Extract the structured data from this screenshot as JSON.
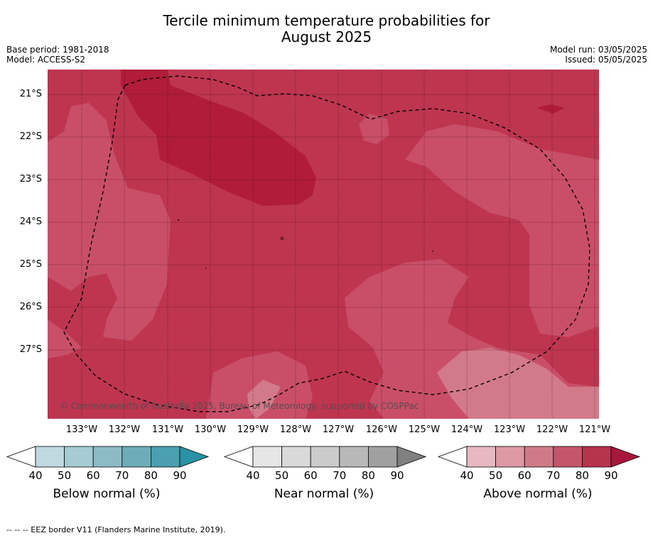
{
  "header": {
    "title_line1": "Tercile minimum temperature probabilities for",
    "title_line2": "August 2025",
    "base_period": "Base period: 1981-2018",
    "model": "Model: ACCESS-S2",
    "model_run": "Model run: 03/05/2025",
    "issued": "Issued: 05/05/2025"
  },
  "map": {
    "lat_labels": [
      "21°S",
      "22°S",
      "23°S",
      "24°S",
      "25°S",
      "26°S",
      "27°S"
    ],
    "lon_labels": [
      "133°W",
      "132°W",
      "131°W",
      "130°W",
      "129°W",
      "128°W",
      "127°W",
      "126°W",
      "125°W",
      "124°W",
      "123°W",
      "122°W",
      "121°W"
    ],
    "copyright": "© Commonwealth of Australia 2025, Bureau of Meteorology, supported by COSPPac",
    "colors": {
      "above_90": "#b01c3a",
      "above_80": "#be3550",
      "above_70": "#c94f68",
      "above_60": "#d37a8a"
    }
  },
  "colorbars": [
    {
      "title": "Below normal (%)",
      "ticks": [
        "40",
        "50",
        "60",
        "70",
        "80",
        "90"
      ],
      "colors": [
        "#ffffff",
        "#c0d8df",
        "#a6cbd3",
        "#8bbcc6",
        "#6eacb9",
        "#4b9faf",
        "#2a92a6"
      ]
    },
    {
      "title": "Near normal (%)",
      "ticks": [
        "40",
        "50",
        "60",
        "70",
        "80",
        "90"
      ],
      "colors": [
        "#ffffff",
        "#e6e6e6",
        "#d9d9d9",
        "#cbcbcb",
        "#b8b8b8",
        "#a0a0a0",
        "#808080"
      ]
    },
    {
      "title": "Above normal (%)",
      "ticks": [
        "40",
        "50",
        "60",
        "70",
        "80",
        "90"
      ],
      "colors": [
        "#ffffff",
        "#e6b9c1",
        "#dc9aa5",
        "#d07a88",
        "#c4566b",
        "#b8334e",
        "#a8173a"
      ]
    }
  ],
  "footnote": "-- -- -- EEZ border V11 (Flanders Marine Institute, 2019)."
}
